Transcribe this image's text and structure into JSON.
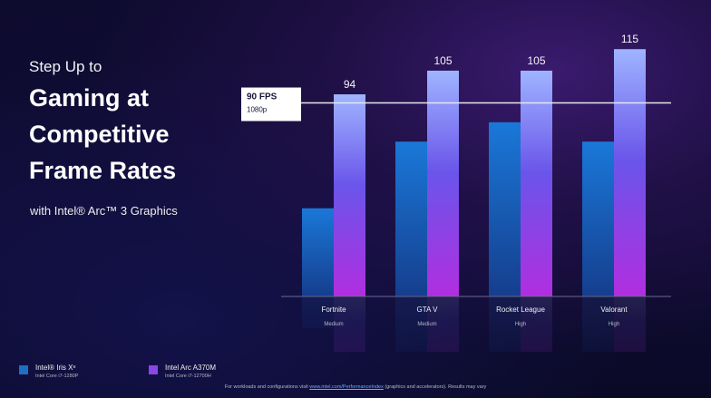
{
  "headline": {
    "kicker": "Step Up to",
    "lines": [
      "Gaming at",
      "Competitive",
      "Frame Rates"
    ],
    "subline": "with Intel® Arc™ 3 Graphics"
  },
  "chart_data": {
    "type": "bar",
    "categories": [
      "Fortnite",
      "GTA V",
      "Rocket League",
      "Valorant"
    ],
    "category_sublabels": [
      "Medium",
      "Medium",
      "High",
      "High"
    ],
    "series": [
      {
        "name": "Intel® Iris Xᵉ",
        "sub": "Intel Core i7-1280P",
        "color": "#1e6fc4",
        "values": [
          41,
          72,
          81,
          72
        ]
      },
      {
        "name": "Intel Arc A370M",
        "sub": "Intel Core i7-12700H",
        "color": "#8a46e6",
        "values": [
          94,
          105,
          105,
          115
        ]
      }
    ],
    "data_labels": [
      "94",
      "105",
      "105",
      "115"
    ],
    "reference_line": {
      "value": 90,
      "label": "90 FPS",
      "sublabel": "1080p"
    },
    "ylim": [
      0,
      121
    ],
    "grid": false,
    "legend": "bottom-left",
    "title": "",
    "xlabel": "",
    "ylabel": ""
  },
  "footnote": {
    "pre": "For workloads and configurations visit ",
    "link": "www.intel.com/PerformanceIndex",
    "post": " (graphics and accelerators).  Results may vary"
  }
}
